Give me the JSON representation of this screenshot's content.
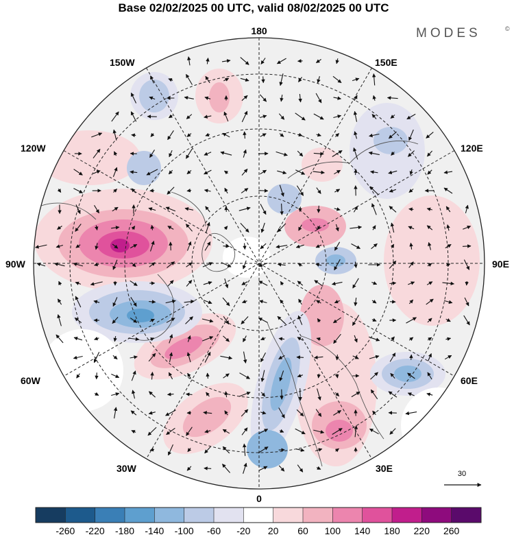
{
  "title": "Base 02/02/2025 00 UTC, valid 08/02/2025 00 UTC",
  "brand": "MODES",
  "brand_mark": "©",
  "longitude_labels": {
    "top": "180",
    "bottom": "0",
    "left": "90W",
    "right": "90E",
    "upper_left_1": "150W",
    "upper_left_2": "120W",
    "lower_left_1": "60W",
    "lower_left_2": "30W",
    "upper_right_1": "150E",
    "upper_right_2": "120E",
    "lower_right_1": "60E",
    "lower_right_2": "30E"
  },
  "vector_scale": {
    "label": "30"
  },
  "colorbar": {
    "ticks": [
      "-260",
      "-220",
      "-180",
      "-140",
      "-100",
      "-60",
      "-20",
      "20",
      "60",
      "100",
      "140",
      "180",
      "220",
      "260"
    ],
    "colors": [
      "#163c60",
      "#1d5a8c",
      "#3a7fb6",
      "#5e9fcf",
      "#8fb8de",
      "#bccbe6",
      "#e2e2f0",
      "#ffffff",
      "#f8d9dc",
      "#f2b3c0",
      "#ec85ae",
      "#e0529c",
      "#c11e8c",
      "#8e0b7d",
      "#5a0a6b"
    ]
  },
  "map": {
    "background": "#f0f0f0",
    "anomaly_blobs": [
      {
        "value": 200,
        "color": "#c11e8c"
      },
      {
        "value": 140,
        "color": "#e0529c"
      },
      {
        "value": 100,
        "color": "#ec85ae"
      },
      {
        "value": 60,
        "color": "#f2b3c0"
      },
      {
        "value": 20,
        "color": "#f8d9dc"
      },
      {
        "value": -20,
        "color": "#e2e2f0"
      },
      {
        "value": -60,
        "color": "#bccbe6"
      },
      {
        "value": -100,
        "color": "#8fb8de"
      },
      {
        "value": -140,
        "color": "#5e9fcf"
      }
    ]
  }
}
